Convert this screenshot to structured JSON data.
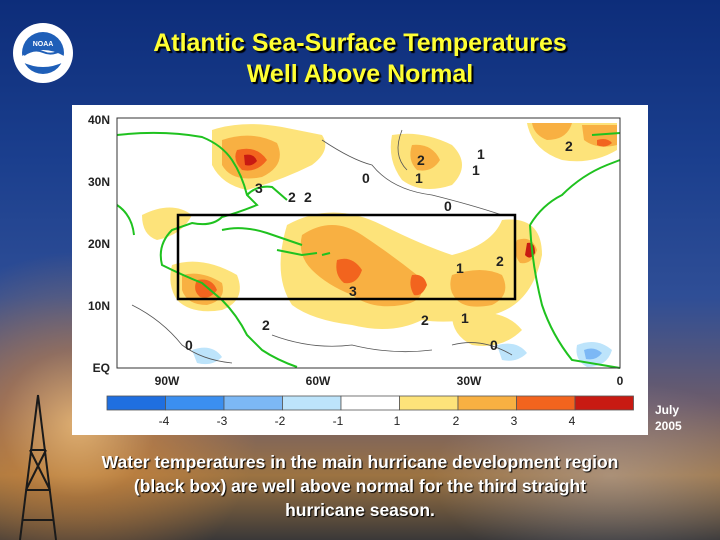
{
  "title_line1": "Atlantic Sea-Surface Temperatures",
  "title_line2": "Well Above Normal",
  "logo_text": "NOAA",
  "map": {
    "lat_labels": [
      "40N",
      "30N",
      "20N",
      "10N",
      "EQ"
    ],
    "lon_labels": [
      "90W",
      "60W",
      "30W",
      "0"
    ],
    "contour_labels": [
      "2",
      "1",
      "0",
      "3",
      "2",
      "2",
      "2",
      "1",
      "0",
      "1",
      "2",
      "3",
      "2",
      "1",
      "0",
      "2",
      "1",
      "0"
    ],
    "box_label": "main hurricane development region"
  },
  "colorbar": {
    "tick_labels": [
      "-4",
      "-3",
      "-2",
      "-1",
      "1",
      "2",
      "3",
      "4"
    ],
    "colors": [
      "#1f6fe0",
      "#3b8ff0",
      "#7cb8f5",
      "#bde4fb",
      "#ffffff",
      "#fde37a",
      "#f8b042",
      "#f2641e",
      "#c81a12"
    ]
  },
  "date_month": "July",
  "date_year": "2005",
  "caption_line1": "Water temperatures in the main hurricane development region",
  "caption_line2": "(black box) are well above normal for the third straight",
  "caption_line3": "hurricane season."
}
